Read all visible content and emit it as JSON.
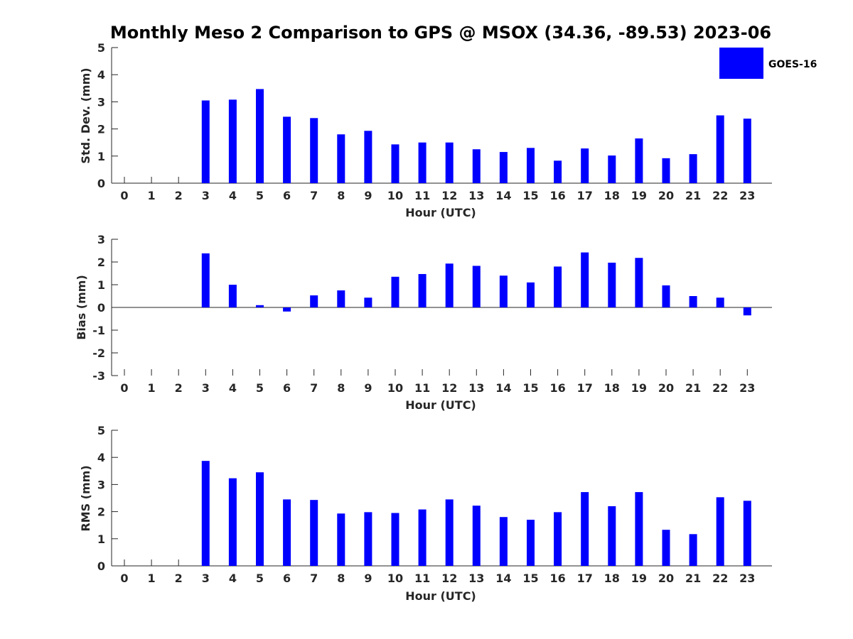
{
  "colors": {
    "bar": "#0000ff",
    "axis": "#262626"
  },
  "chart_data": [
    {
      "type": "bar",
      "title": "Monthly Meso 2 Comparison to GPS @ MSOX (34.36, -89.53) 2023-06",
      "xlabel": "Hour (UTC)",
      "ylabel": "Std. Dev. (mm)",
      "ylim": [
        0,
        5
      ],
      "yticks": [
        0,
        1,
        2,
        3,
        4,
        5
      ],
      "categories": [
        "0",
        "1",
        "2",
        "3",
        "4",
        "5",
        "6",
        "7",
        "8",
        "9",
        "10",
        "11",
        "12",
        "13",
        "14",
        "15",
        "16",
        "17",
        "18",
        "19",
        "20",
        "21",
        "22",
        "23"
      ],
      "series": [
        {
          "name": "GOES-16",
          "values": [
            null,
            null,
            null,
            3.05,
            3.08,
            3.47,
            2.45,
            2.4,
            1.8,
            1.93,
            1.43,
            1.5,
            1.5,
            1.25,
            1.15,
            1.3,
            0.83,
            1.28,
            1.02,
            1.65,
            0.92,
            1.07,
            2.5,
            2.38
          ]
        }
      ],
      "legend": {
        "position": "top-right",
        "entries": [
          "GOES-16"
        ]
      },
      "grid": false
    },
    {
      "type": "bar",
      "title": "",
      "xlabel": "Hour (UTC)",
      "ylabel": "Bias (mm)",
      "ylim": [
        -3,
        3
      ],
      "yticks": [
        -3,
        -2,
        -1,
        0,
        1,
        2,
        3
      ],
      "categories": [
        "0",
        "1",
        "2",
        "3",
        "4",
        "5",
        "6",
        "7",
        "8",
        "9",
        "10",
        "11",
        "12",
        "13",
        "14",
        "15",
        "16",
        "17",
        "18",
        "19",
        "20",
        "21",
        "22",
        "23"
      ],
      "series": [
        {
          "name": "GOES-16",
          "values": [
            null,
            null,
            null,
            2.38,
            1.0,
            0.1,
            -0.18,
            0.53,
            0.75,
            0.43,
            1.35,
            1.47,
            1.93,
            1.83,
            1.4,
            1.1,
            1.8,
            2.42,
            1.97,
            2.18,
            0.97,
            0.5,
            0.43,
            -0.35
          ]
        }
      ],
      "grid": false
    },
    {
      "type": "bar",
      "title": "",
      "xlabel": "Hour (UTC)",
      "ylabel": "RMS (mm)",
      "ylim": [
        0,
        5
      ],
      "yticks": [
        0,
        1,
        2,
        3,
        4,
        5
      ],
      "categories": [
        "0",
        "1",
        "2",
        "3",
        "4",
        "5",
        "6",
        "7",
        "8",
        "9",
        "10",
        "11",
        "12",
        "13",
        "14",
        "15",
        "16",
        "17",
        "18",
        "19",
        "20",
        "21",
        "22",
        "23"
      ],
      "series": [
        {
          "name": "GOES-16",
          "values": [
            null,
            null,
            null,
            3.87,
            3.23,
            3.45,
            2.45,
            2.43,
            1.93,
            1.98,
            1.95,
            2.08,
            2.45,
            2.22,
            1.8,
            1.7,
            1.98,
            2.72,
            2.2,
            2.72,
            1.33,
            1.17,
            2.53,
            2.4
          ]
        }
      ],
      "grid": false
    }
  ]
}
